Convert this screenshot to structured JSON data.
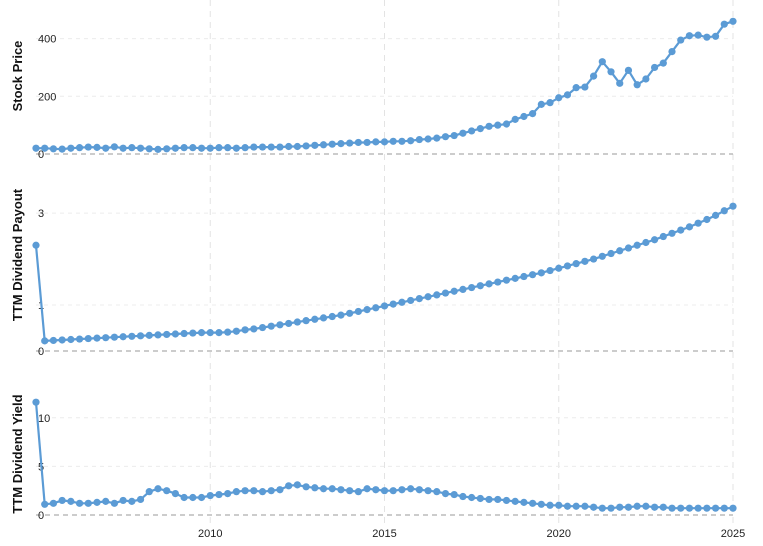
{
  "chart_data": [
    {
      "type": "line",
      "ylabel": "Stock Price",
      "yticks": [
        0,
        200,
        400
      ],
      "ylim": [
        -30,
        520
      ],
      "xlim": [
        2005.0,
        2025.0
      ],
      "x": [
        2005.0,
        2005.25,
        2005.5,
        2005.75,
        2006.0,
        2006.25,
        2006.5,
        2006.75,
        2007.0,
        2007.25,
        2007.5,
        2007.75,
        2008.0,
        2008.25,
        2008.5,
        2008.75,
        2009.0,
        2009.25,
        2009.5,
        2009.75,
        2010.0,
        2010.25,
        2010.5,
        2010.75,
        2011.0,
        2011.25,
        2011.5,
        2011.75,
        2012.0,
        2012.25,
        2012.5,
        2012.75,
        2013.0,
        2013.25,
        2013.5,
        2013.75,
        2014.0,
        2014.25,
        2014.5,
        2014.75,
        2015.0,
        2015.25,
        2015.5,
        2015.75,
        2016.0,
        2016.25,
        2016.5,
        2016.75,
        2017.0,
        2017.25,
        2017.5,
        2017.75,
        2018.0,
        2018.25,
        2018.5,
        2018.75,
        2019.0,
        2019.25,
        2019.5,
        2019.75,
        2020.0,
        2020.25,
        2020.5,
        2020.75,
        2021.0,
        2021.25,
        2021.5,
        2021.75,
        2022.0,
        2022.25,
        2022.5,
        2022.75,
        2023.0,
        2023.25,
        2023.5,
        2023.75,
        2024.0,
        2024.25,
        2024.5,
        2024.75,
        2025.0
      ],
      "values": [
        20,
        20,
        18,
        17,
        20,
        22,
        24,
        23,
        20,
        25,
        20,
        22,
        20,
        18,
        16,
        18,
        20,
        22,
        22,
        20,
        20,
        22,
        22,
        20,
        22,
        24,
        24,
        24,
        24,
        26,
        26,
        28,
        30,
        32,
        34,
        36,
        38,
        40,
        40,
        42,
        42,
        44,
        44,
        46,
        50,
        52,
        55,
        60,
        64,
        72,
        80,
        88,
        96,
        100,
        104,
        120,
        130,
        140,
        172,
        178,
        195,
        205,
        230,
        232,
        270,
        320,
        285,
        245,
        290,
        240,
        260,
        300,
        315,
        355,
        395,
        410,
        412,
        405,
        408,
        450,
        460
      ],
      "color": "#5b9bd5"
    },
    {
      "type": "line",
      "ylabel": "TTM Dividend Payout",
      "yticks": [
        0,
        1,
        3
      ],
      "ylim": [
        -0.15,
        3.85
      ],
      "xlim": [
        2005.0,
        2025.0
      ],
      "x": [
        2005.0,
        2005.25,
        2005.5,
        2005.75,
        2006.0,
        2006.25,
        2006.5,
        2006.75,
        2007.0,
        2007.25,
        2007.5,
        2007.75,
        2008.0,
        2008.25,
        2008.5,
        2008.75,
        2009.0,
        2009.25,
        2009.5,
        2009.75,
        2010.0,
        2010.25,
        2010.5,
        2010.75,
        2011.0,
        2011.25,
        2011.5,
        2011.75,
        2012.0,
        2012.25,
        2012.5,
        2012.75,
        2013.0,
        2013.25,
        2013.5,
        2013.75,
        2014.0,
        2014.25,
        2014.5,
        2014.75,
        2015.0,
        2015.25,
        2015.5,
        2015.75,
        2016.0,
        2016.25,
        2016.5,
        2016.75,
        2017.0,
        2017.25,
        2017.5,
        2017.75,
        2018.0,
        2018.25,
        2018.5,
        2018.75,
        2019.0,
        2019.25,
        2019.5,
        2019.75,
        2020.0,
        2020.25,
        2020.5,
        2020.75,
        2021.0,
        2021.25,
        2021.5,
        2021.75,
        2022.0,
        2022.25,
        2022.5,
        2022.75,
        2023.0,
        2023.25,
        2023.5,
        2023.75,
        2024.0,
        2024.25,
        2024.5,
        2024.75,
        2025.0
      ],
      "values": [
        2.3,
        0.22,
        0.23,
        0.24,
        0.25,
        0.26,
        0.27,
        0.28,
        0.29,
        0.3,
        0.31,
        0.32,
        0.33,
        0.34,
        0.35,
        0.36,
        0.37,
        0.38,
        0.39,
        0.4,
        0.4,
        0.4,
        0.41,
        0.43,
        0.46,
        0.48,
        0.51,
        0.54,
        0.57,
        0.6,
        0.63,
        0.66,
        0.69,
        0.72,
        0.75,
        0.78,
        0.82,
        0.86,
        0.9,
        0.94,
        0.98,
        1.02,
        1.06,
        1.1,
        1.14,
        1.18,
        1.22,
        1.26,
        1.3,
        1.34,
        1.38,
        1.42,
        1.46,
        1.5,
        1.54,
        1.58,
        1.62,
        1.66,
        1.7,
        1.75,
        1.8,
        1.85,
        1.9,
        1.95,
        2.0,
        2.06,
        2.12,
        2.18,
        2.24,
        2.3,
        2.36,
        2.42,
        2.49,
        2.56,
        2.63,
        2.7,
        2.78,
        2.86,
        2.95,
        3.05,
        3.15
      ],
      "color": "#5b9bd5"
    },
    {
      "type": "line",
      "ylabel": "TTM Dividend Yield",
      "yticks": [
        0,
        5,
        10
      ],
      "ylim": [
        -0.3,
        14.5
      ],
      "xlim": [
        2005.0,
        2025.0
      ],
      "x": [
        2005.0,
        2005.25,
        2005.5,
        2005.75,
        2006.0,
        2006.25,
        2006.5,
        2006.75,
        2007.0,
        2007.25,
        2007.5,
        2007.75,
        2008.0,
        2008.25,
        2008.5,
        2008.75,
        2009.0,
        2009.25,
        2009.5,
        2009.75,
        2010.0,
        2010.25,
        2010.5,
        2010.75,
        2011.0,
        2011.25,
        2011.5,
        2011.75,
        2012.0,
        2012.25,
        2012.5,
        2012.75,
        2013.0,
        2013.25,
        2013.5,
        2013.75,
        2014.0,
        2014.25,
        2014.5,
        2014.75,
        2015.0,
        2015.25,
        2015.5,
        2015.75,
        2016.0,
        2016.25,
        2016.5,
        2016.75,
        2017.0,
        2017.25,
        2017.5,
        2017.75,
        2018.0,
        2018.25,
        2018.5,
        2018.75,
        2019.0,
        2019.25,
        2019.5,
        2019.75,
        2020.0,
        2020.25,
        2020.5,
        2020.75,
        2021.0,
        2021.25,
        2021.5,
        2021.75,
        2022.0,
        2022.25,
        2022.5,
        2022.75,
        2023.0,
        2023.25,
        2023.5,
        2023.75,
        2024.0,
        2024.25,
        2024.5,
        2024.75,
        2025.0
      ],
      "values": [
        11.6,
        1.1,
        1.2,
        1.5,
        1.4,
        1.2,
        1.2,
        1.3,
        1.4,
        1.2,
        1.5,
        1.4,
        1.6,
        2.4,
        2.7,
        2.5,
        2.2,
        1.8,
        1.8,
        1.8,
        2.0,
        2.1,
        2.2,
        2.4,
        2.5,
        2.5,
        2.4,
        2.5,
        2.6,
        3.0,
        3.1,
        2.9,
        2.8,
        2.7,
        2.7,
        2.6,
        2.5,
        2.4,
        2.7,
        2.6,
        2.5,
        2.5,
        2.6,
        2.7,
        2.6,
        2.5,
        2.4,
        2.2,
        2.1,
        1.9,
        1.8,
        1.7,
        1.6,
        1.6,
        1.5,
        1.4,
        1.3,
        1.2,
        1.1,
        1.0,
        1.0,
        0.9,
        0.9,
        0.9,
        0.8,
        0.7,
        0.7,
        0.8,
        0.8,
        0.9,
        0.9,
        0.8,
        0.8,
        0.7,
        0.7,
        0.7,
        0.7,
        0.7,
        0.7,
        0.7,
        0.7
      ],
      "color": "#5b9bd5"
    }
  ],
  "x_axis": {
    "ticks": [
      2010,
      2015,
      2020,
      2025
    ]
  }
}
